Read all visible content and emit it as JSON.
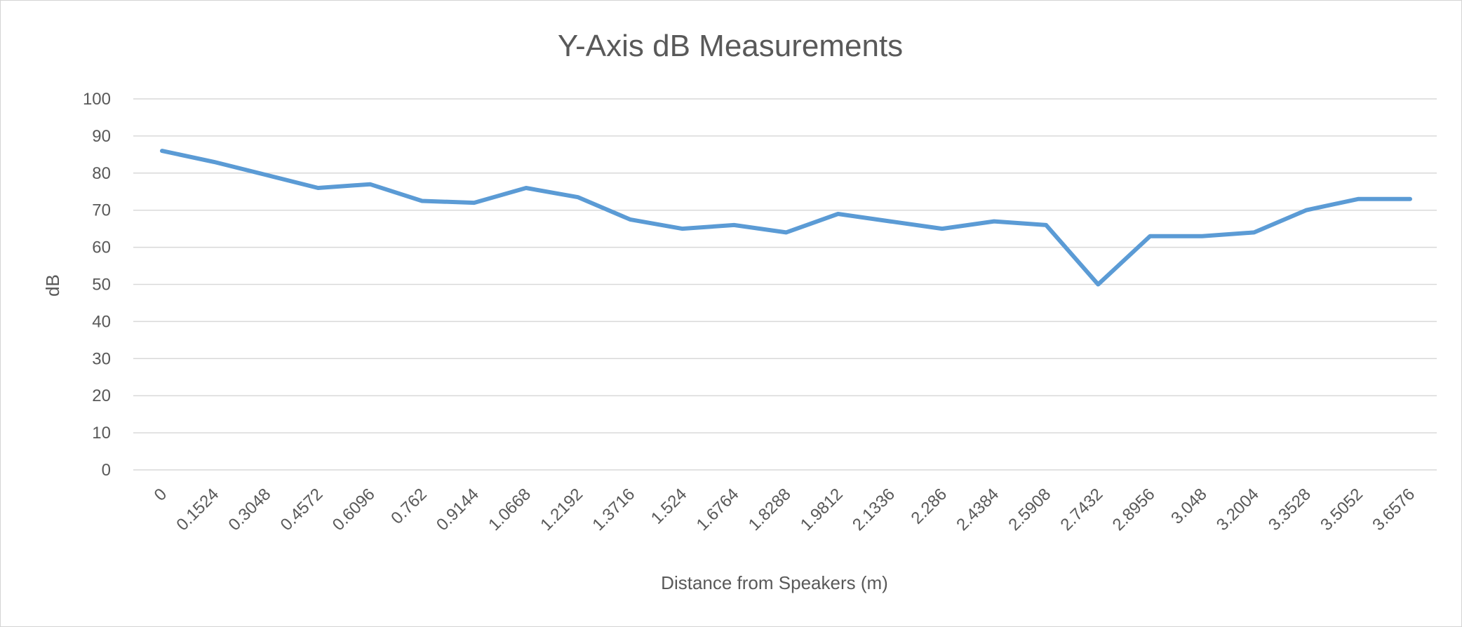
{
  "chart_data": {
    "type": "line",
    "title": "Y-Axis dB Measurements",
    "xlabel": "Distance from Speakers (m)",
    "ylabel": "dB",
    "ylim": [
      0,
      100
    ],
    "yticks": [
      0,
      10,
      20,
      30,
      40,
      50,
      60,
      70,
      80,
      90,
      100
    ],
    "grid": true,
    "legend": "none",
    "categories": [
      "0",
      "0.1524",
      "0.3048",
      "0.4572",
      "0.6096",
      "0.762",
      "0.9144",
      "1.0668",
      "1.2192",
      "1.3716",
      "1.524",
      "1.6764",
      "1.8288",
      "1.9812",
      "2.1336",
      "2.286",
      "2.4384",
      "2.5908",
      "2.7432",
      "2.8956",
      "3.048",
      "3.2004",
      "3.3528",
      "3.5052",
      "3.6576"
    ],
    "series": [
      {
        "color": "#5b9bd5",
        "values": [
          86,
          83,
          79.5,
          76,
          77,
          72.5,
          72,
          76,
          73.5,
          67.5,
          65,
          66,
          64,
          69,
          67,
          65,
          67,
          66,
          50,
          63,
          63,
          64,
          70,
          73,
          73
        ]
      }
    ]
  }
}
